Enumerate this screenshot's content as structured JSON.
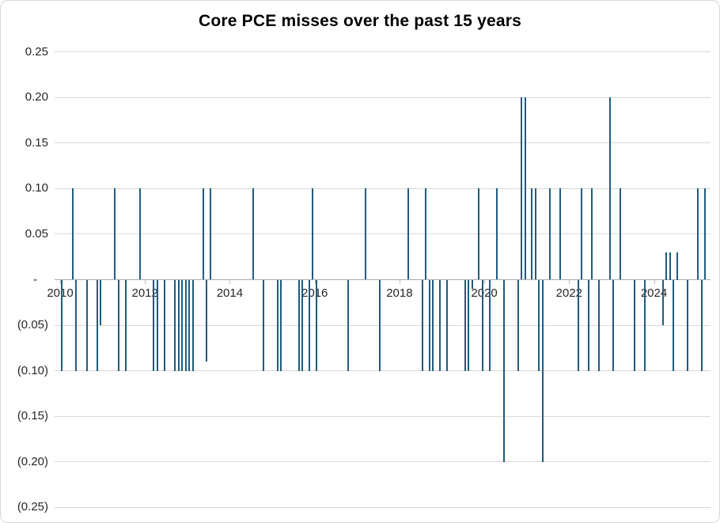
{
  "title": "Core PCE misses over the past 15 years",
  "chart_data": {
    "type": "bar",
    "title": "Core PCE misses over the past 15 years",
    "xlabel": "",
    "ylabel": "",
    "x_unit": "month",
    "x_range": [
      "2010-01",
      "2025-04"
    ],
    "x_year_labels": [
      "2010",
      "2012",
      "2014",
      "2016",
      "2018",
      "2020",
      "2022",
      "2024"
    ],
    "ylim": [
      -0.25,
      0.25
    ],
    "grid": true,
    "legend": false,
    "bar_color": "#1f5c7e",
    "y_ticks": [
      {
        "value": 0.25,
        "label": "0.25"
      },
      {
        "value": 0.2,
        "label": "0.20"
      },
      {
        "value": 0.15,
        "label": "0.15"
      },
      {
        "value": 0.1,
        "label": "0.10"
      },
      {
        "value": 0.05,
        "label": "0.05"
      },
      {
        "value": 0.0,
        "label": "-"
      },
      {
        "value": -0.05,
        "label": "(0.05)"
      },
      {
        "value": -0.1,
        "label": "(0.10)"
      },
      {
        "value": -0.15,
        "label": "(0.15)"
      },
      {
        "value": -0.2,
        "label": "(0.20)"
      },
      {
        "value": -0.25,
        "label": "(0.25)"
      }
    ],
    "points": [
      {
        "month": "2010-01",
        "value": -0.1
      },
      {
        "month": "2010-04",
        "value": 0.1
      },
      {
        "month": "2010-05",
        "value": -0.1
      },
      {
        "month": "2010-08",
        "value": -0.1
      },
      {
        "month": "2010-11",
        "value": -0.1
      },
      {
        "month": "2010-12",
        "value": -0.05
      },
      {
        "month": "2011-04",
        "value": 0.1
      },
      {
        "month": "2011-05",
        "value": -0.1
      },
      {
        "month": "2011-07",
        "value": -0.1
      },
      {
        "month": "2011-11",
        "value": 0.1
      },
      {
        "month": "2012-03",
        "value": -0.1
      },
      {
        "month": "2012-04",
        "value": -0.1
      },
      {
        "month": "2012-06",
        "value": -0.1
      },
      {
        "month": "2012-09",
        "value": -0.1
      },
      {
        "month": "2012-10",
        "value": -0.1
      },
      {
        "month": "2012-11",
        "value": -0.1
      },
      {
        "month": "2012-12",
        "value": -0.1
      },
      {
        "month": "2013-01",
        "value": -0.1
      },
      {
        "month": "2013-02",
        "value": -0.1
      },
      {
        "month": "2013-05",
        "value": 0.1
      },
      {
        "month": "2013-06",
        "value": -0.09
      },
      {
        "month": "2013-07",
        "value": 0.1
      },
      {
        "month": "2014-07",
        "value": 0.1
      },
      {
        "month": "2014-10",
        "value": -0.1
      },
      {
        "month": "2015-02",
        "value": -0.1
      },
      {
        "month": "2015-03",
        "value": -0.1
      },
      {
        "month": "2015-08",
        "value": -0.1
      },
      {
        "month": "2015-09",
        "value": -0.1
      },
      {
        "month": "2015-11",
        "value": -0.1
      },
      {
        "month": "2015-12",
        "value": 0.1
      },
      {
        "month": "2016-01",
        "value": -0.1
      },
      {
        "month": "2016-10",
        "value": -0.1
      },
      {
        "month": "2017-03",
        "value": 0.1
      },
      {
        "month": "2017-07",
        "value": -0.1
      },
      {
        "month": "2018-03",
        "value": 0.1
      },
      {
        "month": "2018-07",
        "value": -0.1
      },
      {
        "month": "2018-08",
        "value": 0.1
      },
      {
        "month": "2018-09",
        "value": -0.1
      },
      {
        "month": "2018-10",
        "value": -0.1
      },
      {
        "month": "2018-12",
        "value": -0.1
      },
      {
        "month": "2019-02",
        "value": -0.1
      },
      {
        "month": "2019-07",
        "value": -0.1
      },
      {
        "month": "2019-08",
        "value": -0.1
      },
      {
        "month": "2019-09",
        "value": -0.01
      },
      {
        "month": "2019-11",
        "value": 0.1
      },
      {
        "month": "2019-12",
        "value": -0.1
      },
      {
        "month": "2020-02",
        "value": -0.1
      },
      {
        "month": "2020-04",
        "value": 0.1
      },
      {
        "month": "2020-06",
        "value": -0.2
      },
      {
        "month": "2020-10",
        "value": -0.1
      },
      {
        "month": "2020-11",
        "value": 0.2
      },
      {
        "month": "2020-12",
        "value": 0.2
      },
      {
        "month": "2021-02",
        "value": 0.1
      },
      {
        "month": "2021-03",
        "value": 0.1
      },
      {
        "month": "2021-04",
        "value": -0.1
      },
      {
        "month": "2021-05",
        "value": -0.2
      },
      {
        "month": "2021-07",
        "value": 0.1
      },
      {
        "month": "2021-10",
        "value": 0.1
      },
      {
        "month": "2022-03",
        "value": -0.1
      },
      {
        "month": "2022-04",
        "value": 0.1
      },
      {
        "month": "2022-06",
        "value": -0.1
      },
      {
        "month": "2022-07",
        "value": 0.1
      },
      {
        "month": "2022-09",
        "value": -0.1
      },
      {
        "month": "2022-12",
        "value": 0.2
      },
      {
        "month": "2023-01",
        "value": -0.1
      },
      {
        "month": "2023-03",
        "value": 0.1
      },
      {
        "month": "2023-07",
        "value": -0.1
      },
      {
        "month": "2023-10",
        "value": -0.1
      },
      {
        "month": "2024-03",
        "value": -0.05
      },
      {
        "month": "2024-04",
        "value": 0.03
      },
      {
        "month": "2024-05",
        "value": 0.03
      },
      {
        "month": "2024-06",
        "value": -0.1
      },
      {
        "month": "2024-07",
        "value": 0.03
      },
      {
        "month": "2024-10",
        "value": -0.1
      },
      {
        "month": "2025-01",
        "value": 0.1
      },
      {
        "month": "2025-02",
        "value": -0.1
      },
      {
        "month": "2025-03",
        "value": 0.1
      }
    ]
  },
  "colors": {
    "bar": "#1f5c7e",
    "gridline": "#d9d9d9",
    "axis_line": "#a9a9a9",
    "tick": "#bfbfbf",
    "label_text": "#262626",
    "title_text": "#000000",
    "background": "#ffffff",
    "border": "#d7d7d7"
  }
}
